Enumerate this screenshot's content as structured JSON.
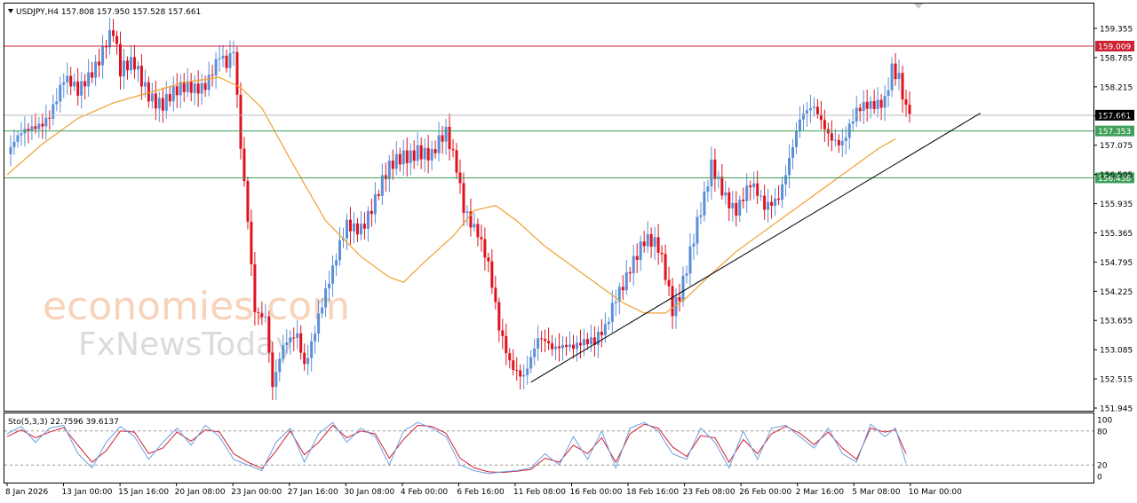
{
  "header": {
    "symbol_line": "USDJPY,H4  157.808 157.950 157.528 157.661",
    "stoch_line": "Sto(5,3,3) 22.7596 39.6137"
  },
  "watermark": {
    "line1": "economies.com",
    "line2": "FxNewsToday"
  },
  "colors": {
    "bull": "#5b8fd8",
    "bear": "#e0121e",
    "ma": "#f0a030",
    "stoch_main": "#6f9fe0",
    "stoch_signal": "#d11e2e",
    "resistance": "#cc2233",
    "support": "#3fa05a",
    "price_line": "#bbbbbb",
    "trendline": "#000000"
  },
  "chart_data": {
    "type": "candlestick",
    "symbol": "USDJPY",
    "timeframe": "H4",
    "ylim": [
      151.95,
      159.6
    ],
    "y_ticks": [
      "159.355",
      "158.785",
      "158.215",
      "157.645",
      "157.075",
      "156.505",
      "155.935",
      "155.365",
      "154.795",
      "154.225",
      "153.655",
      "153.085",
      "152.515",
      "151.945"
    ],
    "x_ticks": [
      "8 Jan 2026",
      "13 Jan 00:00",
      "15 Jan 16:00",
      "20 Jan 08:00",
      "23 Jan 00:00",
      "27 Jan 16:00",
      "30 Jan 08:00",
      "4 Feb 00:00",
      "6 Feb 16:00",
      "11 Feb 08:00",
      "16 Feb 00:00",
      "18 Feb 16:00",
      "23 Feb 08:00",
      "26 Feb 00:00",
      "2 Mar 16:00",
      "5 Mar 08:00",
      "10 Mar 00:00"
    ],
    "levels": [
      {
        "label": "159.009",
        "value": 159.009,
        "kind": "resistance"
      },
      {
        "label": "157.661",
        "value": 157.661,
        "kind": "current"
      },
      {
        "label": "157.353",
        "value": 157.353,
        "kind": "support"
      },
      {
        "label": "156.438",
        "value": 156.438,
        "kind": "support"
      }
    ],
    "close_path": [
      [
        0,
        156.9
      ],
      [
        6,
        157.3
      ],
      [
        12,
        157.8
      ],
      [
        16,
        158.3
      ],
      [
        20,
        158.0
      ],
      [
        24,
        158.6
      ],
      [
        28,
        159.2
      ],
      [
        30,
        159.3
      ],
      [
        32,
        158.4
      ],
      [
        36,
        158.6
      ],
      [
        40,
        158.2
      ],
      [
        44,
        157.9
      ],
      [
        48,
        158.0
      ],
      [
        52,
        158.2
      ],
      [
        56,
        158.4
      ],
      [
        60,
        158.8
      ],
      [
        62,
        158.5
      ],
      [
        64,
        158.8
      ],
      [
        66,
        157.0
      ],
      [
        68,
        155.7
      ],
      [
        70,
        154.0
      ],
      [
        73,
        153.8
      ],
      [
        75,
        152.3
      ],
      [
        78,
        153.0
      ],
      [
        82,
        153.4
      ],
      [
        84,
        152.9
      ],
      [
        88,
        153.8
      ],
      [
        92,
        154.5
      ],
      [
        96,
        155.5
      ],
      [
        100,
        155.6
      ],
      [
        104,
        156.0
      ],
      [
        108,
        156.5
      ],
      [
        112,
        156.9
      ],
      [
        116,
        157.1
      ],
      [
        120,
        156.8
      ],
      [
        124,
        157.2
      ],
      [
        127,
        156.7
      ],
      [
        129,
        156.0
      ],
      [
        133,
        155.4
      ],
      [
        136,
        154.6
      ],
      [
        139,
        153.4
      ],
      [
        142,
        152.9
      ],
      [
        146,
        152.7
      ],
      [
        150,
        153.2
      ],
      [
        154,
        153.0
      ],
      [
        158,
        153.3
      ],
      [
        162,
        153.3
      ],
      [
        166,
        153.1
      ],
      [
        169,
        153.4
      ],
      [
        172,
        154.2
      ],
      [
        176,
        154.8
      ],
      [
        180,
        155.1
      ],
      [
        184,
        155.0
      ],
      [
        186,
        154.6
      ],
      [
        188,
        154.0
      ],
      [
        190,
        154.3
      ],
      [
        194,
        155.2
      ],
      [
        197,
        155.9
      ],
      [
        199,
        156.6
      ],
      [
        202,
        156.3
      ],
      [
        206,
        155.9
      ],
      [
        210,
        156.2
      ],
      [
        214,
        155.8
      ],
      [
        218,
        156.2
      ],
      [
        221,
        156.9
      ],
      [
        224,
        157.5
      ],
      [
        228,
        157.7
      ],
      [
        232,
        157.4
      ],
      [
        236,
        157.2
      ],
      [
        240,
        157.6
      ],
      [
        244,
        157.8
      ],
      [
        248,
        158.1
      ],
      [
        250,
        158.7
      ],
      [
        252,
        158.4
      ],
      [
        254,
        157.65
      ]
    ],
    "ma_path": [
      [
        0,
        156.5
      ],
      [
        10,
        157.1
      ],
      [
        20,
        157.6
      ],
      [
        30,
        157.9
      ],
      [
        40,
        158.1
      ],
      [
        50,
        158.3
      ],
      [
        60,
        158.4
      ],
      [
        66,
        158.2
      ],
      [
        72,
        157.8
      ],
      [
        80,
        156.8
      ],
      [
        90,
        155.6
      ],
      [
        100,
        154.9
      ],
      [
        108,
        154.5
      ],
      [
        112,
        154.4
      ],
      [
        118,
        154.8
      ],
      [
        126,
        155.3
      ],
      [
        132,
        155.8
      ],
      [
        138,
        155.9
      ],
      [
        144,
        155.6
      ],
      [
        152,
        155.1
      ],
      [
        160,
        154.7
      ],
      [
        168,
        154.3
      ],
      [
        174,
        154.0
      ],
      [
        180,
        153.8
      ],
      [
        186,
        153.8
      ],
      [
        192,
        154.1
      ],
      [
        198,
        154.5
      ],
      [
        206,
        155.0
      ],
      [
        214,
        155.4
      ],
      [
        222,
        155.8
      ],
      [
        230,
        156.2
      ],
      [
        238,
        156.6
      ],
      [
        246,
        157.0
      ],
      [
        251,
        157.2
      ]
    ],
    "trendline": [
      [
        148,
        152.45
      ],
      [
        275,
        157.7
      ]
    ],
    "stochastic": {
      "params": "Sto(5,3,3)",
      "main": 22.7596,
      "signal": 39.6137,
      "ylim": [
        0,
        100
      ],
      "y_ticks": [
        "100",
        "80",
        "20",
        "0"
      ],
      "levels": [
        80,
        20
      ],
      "main_path": [
        [
          0,
          75
        ],
        [
          4,
          88
        ],
        [
          8,
          60
        ],
        [
          12,
          85
        ],
        [
          16,
          90
        ],
        [
          20,
          40
        ],
        [
          24,
          15
        ],
        [
          28,
          60
        ],
        [
          32,
          88
        ],
        [
          36,
          70
        ],
        [
          40,
          30
        ],
        [
          44,
          60
        ],
        [
          48,
          85
        ],
        [
          52,
          55
        ],
        [
          56,
          90
        ],
        [
          60,
          70
        ],
        [
          64,
          30
        ],
        [
          68,
          20
        ],
        [
          72,
          10
        ],
        [
          76,
          60
        ],
        [
          80,
          85
        ],
        [
          84,
          25
        ],
        [
          88,
          75
        ],
        [
          92,
          95
        ],
        [
          96,
          60
        ],
        [
          100,
          85
        ],
        [
          104,
          70
        ],
        [
          108,
          20
        ],
        [
          112,
          80
        ],
        [
          116,
          95
        ],
        [
          120,
          85
        ],
        [
          124,
          70
        ],
        [
          128,
          20
        ],
        [
          132,
          10
        ],
        [
          136,
          5
        ],
        [
          140,
          8
        ],
        [
          144,
          10
        ],
        [
          148,
          15
        ],
        [
          152,
          40
        ],
        [
          156,
          20
        ],
        [
          160,
          70
        ],
        [
          164,
          30
        ],
        [
          168,
          80
        ],
        [
          172,
          15
        ],
        [
          176,
          85
        ],
        [
          180,
          95
        ],
        [
          184,
          80
        ],
        [
          188,
          40
        ],
        [
          192,
          30
        ],
        [
          196,
          85
        ],
        [
          200,
          60
        ],
        [
          204,
          15
        ],
        [
          208,
          80
        ],
        [
          212,
          30
        ],
        [
          216,
          85
        ],
        [
          220,
          90
        ],
        [
          224,
          70
        ],
        [
          228,
          50
        ],
        [
          232,
          85
        ],
        [
          236,
          40
        ],
        [
          240,
          25
        ],
        [
          244,
          92
        ],
        [
          248,
          70
        ],
        [
          251,
          85
        ],
        [
          254,
          23
        ]
      ],
      "signal_path": [
        [
          0,
          70
        ],
        [
          4,
          82
        ],
        [
          8,
          68
        ],
        [
          12,
          78
        ],
        [
          16,
          86
        ],
        [
          20,
          55
        ],
        [
          24,
          25
        ],
        [
          28,
          45
        ],
        [
          32,
          80
        ],
        [
          36,
          78
        ],
        [
          40,
          40
        ],
        [
          44,
          50
        ],
        [
          48,
          78
        ],
        [
          52,
          62
        ],
        [
          56,
          82
        ],
        [
          60,
          78
        ],
        [
          64,
          40
        ],
        [
          68,
          25
        ],
        [
          72,
          14
        ],
        [
          76,
          45
        ],
        [
          80,
          80
        ],
        [
          84,
          38
        ],
        [
          88,
          60
        ],
        [
          92,
          90
        ],
        [
          96,
          68
        ],
        [
          100,
          80
        ],
        [
          104,
          75
        ],
        [
          108,
          32
        ],
        [
          112,
          65
        ],
        [
          116,
          90
        ],
        [
          120,
          88
        ],
        [
          124,
          76
        ],
        [
          128,
          32
        ],
        [
          132,
          15
        ],
        [
          136,
          8
        ],
        [
          140,
          7
        ],
        [
          144,
          9
        ],
        [
          148,
          12
        ],
        [
          152,
          32
        ],
        [
          156,
          25
        ],
        [
          160,
          55
        ],
        [
          164,
          40
        ],
        [
          168,
          68
        ],
        [
          172,
          25
        ],
        [
          176,
          75
        ],
        [
          180,
          92
        ],
        [
          184,
          85
        ],
        [
          188,
          52
        ],
        [
          192,
          35
        ],
        [
          196,
          72
        ],
        [
          200,
          68
        ],
        [
          204,
          25
        ],
        [
          208,
          65
        ],
        [
          212,
          40
        ],
        [
          216,
          75
        ],
        [
          220,
          88
        ],
        [
          224,
          76
        ],
        [
          228,
          56
        ],
        [
          232,
          78
        ],
        [
          236,
          50
        ],
        [
          240,
          30
        ],
        [
          244,
          85
        ],
        [
          248,
          78
        ],
        [
          251,
          82
        ],
        [
          254,
          40
        ]
      ]
    }
  }
}
